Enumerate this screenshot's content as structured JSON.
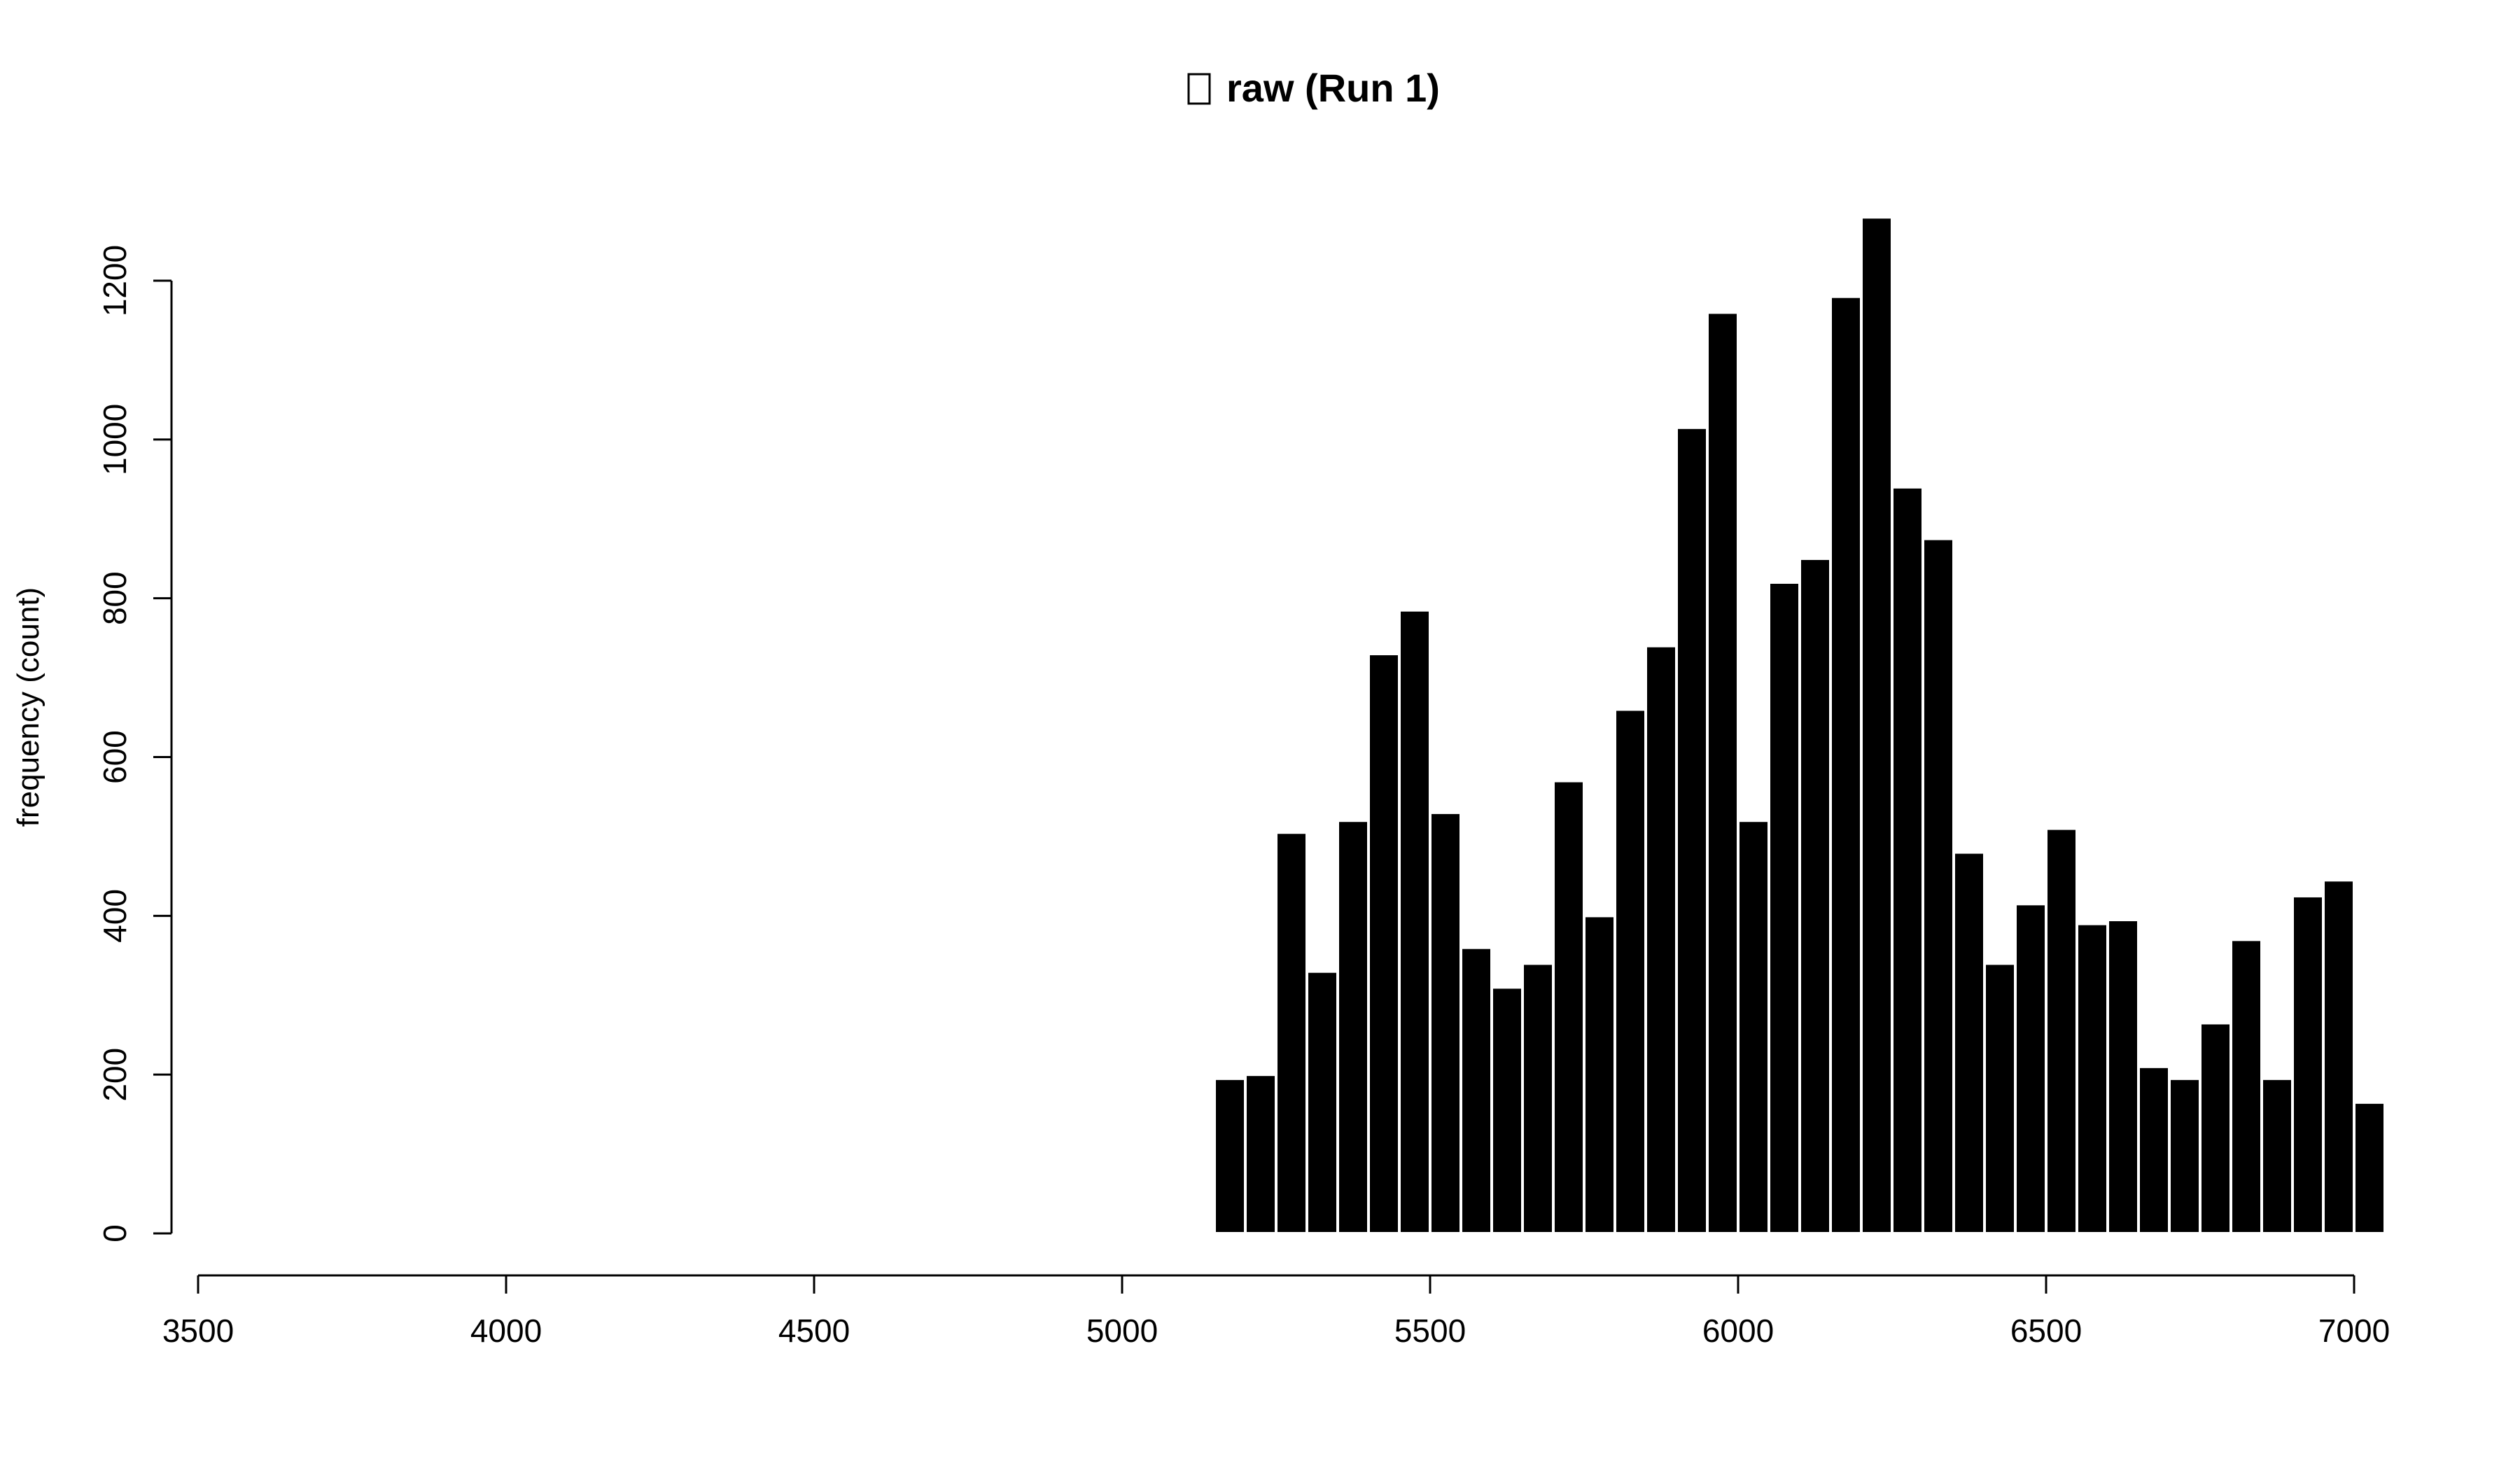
{
  "chart_data": {
    "type": "bar",
    "title": "raw (Run 1)",
    "xlabel": "",
    "ylabel": "frequency (count)",
    "xlim": [
      3500,
      7000
    ],
    "ylim": [
      0,
      1200
    ],
    "x_ticks": [
      "3500",
      "4000",
      "4500",
      "5000",
      "5500",
      "6000",
      "6500",
      "7000"
    ],
    "y_ticks": [
      "0",
      "200",
      "400",
      "600",
      "800",
      "1000",
      "1200"
    ],
    "grid": false,
    "bar_color": "#000000",
    "bins": [
      {
        "x0": 4150,
        "x1": 4200,
        "count": 2
      },
      {
        "x0": 5150,
        "x1": 5200,
        "count": 195
      },
      {
        "x0": 5200,
        "x1": 5250,
        "count": 200
      },
      {
        "x0": 5250,
        "x1": 5300,
        "count": 505
      },
      {
        "x0": 5300,
        "x1": 5350,
        "count": 330
      },
      {
        "x0": 5350,
        "x1": 5400,
        "count": 520
      },
      {
        "x0": 5400,
        "x1": 5450,
        "count": 730
      },
      {
        "x0": 5450,
        "x1": 5500,
        "count": 785
      },
      {
        "x0": 5500,
        "x1": 5550,
        "count": 530
      },
      {
        "x0": 5550,
        "x1": 5600,
        "count": 360
      },
      {
        "x0": 5600,
        "x1": 5650,
        "count": 310
      },
      {
        "x0": 5650,
        "x1": 5700,
        "count": 340
      },
      {
        "x0": 5700,
        "x1": 5750,
        "count": 570
      },
      {
        "x0": 5750,
        "x1": 5800,
        "count": 400
      },
      {
        "x0": 5800,
        "x1": 5850,
        "count": 660
      },
      {
        "x0": 5850,
        "x1": 5900,
        "count": 740
      },
      {
        "x0": 5900,
        "x1": 5950,
        "count": 1015
      },
      {
        "x0": 5950,
        "x1": 6000,
        "count": 1160
      },
      {
        "x0": 6000,
        "x1": 6050,
        "count": 520
      },
      {
        "x0": 6050,
        "x1": 6100,
        "count": 820
      },
      {
        "x0": 6100,
        "x1": 6150,
        "count": 850
      },
      {
        "x0": 6150,
        "x1": 6200,
        "count": 1180
      },
      {
        "x0": 6200,
        "x1": 6250,
        "count": 1280
      },
      {
        "x0": 6250,
        "x1": 6300,
        "count": 940
      },
      {
        "x0": 6300,
        "x1": 6350,
        "count": 875
      },
      {
        "x0": 6350,
        "x1": 6400,
        "count": 480
      },
      {
        "x0": 6400,
        "x1": 6450,
        "count": 340
      },
      {
        "x0": 6450,
        "x1": 6500,
        "count": 415
      },
      {
        "x0": 6500,
        "x1": 6550,
        "count": 510
      },
      {
        "x0": 6550,
        "x1": 6600,
        "count": 390
      },
      {
        "x0": 6600,
        "x1": 6650,
        "count": 395
      },
      {
        "x0": 6650,
        "x1": 6700,
        "count": 210
      },
      {
        "x0": 6700,
        "x1": 6750,
        "count": 195
      },
      {
        "x0": 6750,
        "x1": 6800,
        "count": 265
      },
      {
        "x0": 6800,
        "x1": 6850,
        "count": 370
      },
      {
        "x0": 6850,
        "x1": 6900,
        "count": 195
      },
      {
        "x0": 6900,
        "x1": 6950,
        "count": 425
      },
      {
        "x0": 6950,
        "x1": 7000,
        "count": 445
      },
      {
        "x0": 7000,
        "x1": 7050,
        "count": 165
      }
    ]
  }
}
